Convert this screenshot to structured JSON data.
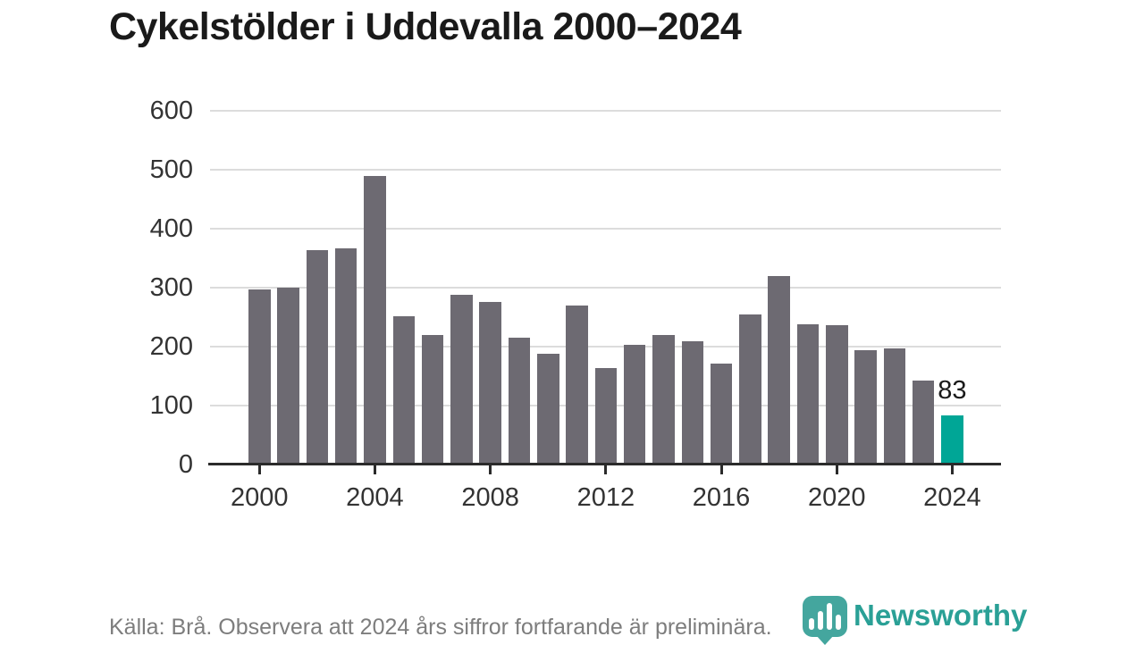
{
  "title": "Cykelstölder i Uddevalla 2000–2024",
  "footer": {
    "source_note": "Källa: Brå. Observera att 2024 års siffror fortfarande är preliminära.",
    "brand": "Newsworthy"
  },
  "colors": {
    "bar": "#6d6a72",
    "highlight_bar": "#00a696",
    "grid": "#dcdcdc",
    "axis": "#2b2b2b",
    "axis_text": "#333333",
    "title_text": "#1a1a1a",
    "footer_text": "#7d7d7d",
    "brand_teal": "#2aa096",
    "logo_pin": "#44a69e"
  },
  "chart_data": {
    "type": "bar",
    "title": "Cykelstölder i Uddevalla 2000–2024",
    "xlabel": "",
    "ylabel": "",
    "categories": [
      2000,
      2001,
      2002,
      2003,
      2004,
      2005,
      2006,
      2007,
      2008,
      2009,
      2010,
      2011,
      2012,
      2013,
      2014,
      2015,
      2016,
      2017,
      2018,
      2019,
      2020,
      2021,
      2022,
      2023,
      2024
    ],
    "values": [
      297,
      300,
      363,
      366,
      489,
      251,
      220,
      288,
      276,
      215,
      188,
      270,
      163,
      203,
      220,
      209,
      171,
      254,
      319,
      237,
      236,
      193,
      196,
      142,
      83
    ],
    "highlight_index": 24,
    "highlight_label": "83",
    "ylim": [
      0,
      600
    ],
    "ytick_step": 100,
    "xticks": [
      2000,
      2004,
      2008,
      2012,
      2016,
      2020,
      2024
    ],
    "grid": "horizontal",
    "legend": "none"
  }
}
